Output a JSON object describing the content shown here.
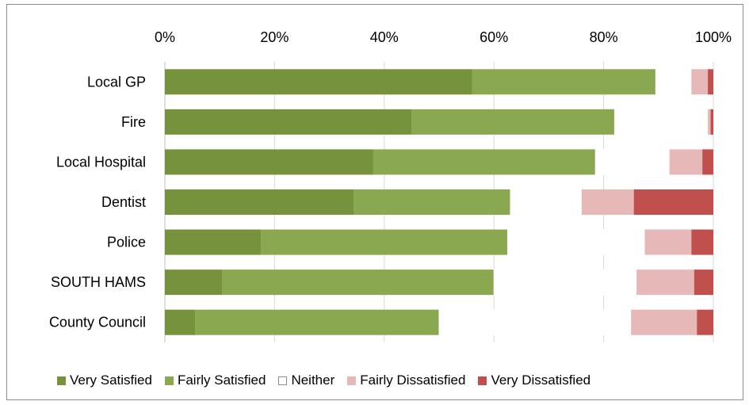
{
  "chart_data": {
    "type": "bar",
    "orientation": "horizontal",
    "stacked": true,
    "percent_stacked": true,
    "categories": [
      "Local GP",
      "Fire",
      "Local Hospital",
      "Dentist",
      "Police",
      "SOUTH HAMS",
      "County Council"
    ],
    "series": [
      {
        "name": "Very Satisfied",
        "color": "#76923c",
        "values": [
          56,
          45,
          38,
          34.5,
          17.5,
          10.5,
          5.5
        ]
      },
      {
        "name": "Fairly Satisfied",
        "color": "#8aa84f",
        "values": [
          33.5,
          37,
          40.5,
          28.5,
          45,
          49.5,
          44.5
        ]
      },
      {
        "name": "Neither",
        "color": "#ffffff",
        "values": [
          6.5,
          17,
          13.5,
          13,
          25,
          26,
          35
        ]
      },
      {
        "name": "Fairly Dissatisfied",
        "color": "#e6b9b8",
        "values": [
          3,
          0.5,
          6,
          9.5,
          8.5,
          10.5,
          12
        ]
      },
      {
        "name": "Very Dissatisfied",
        "color": "#c0504d",
        "values": [
          1,
          0.5,
          2,
          14.5,
          4,
          3.5,
          3
        ]
      }
    ],
    "xlim": [
      0,
      100
    ],
    "x_ticks": [
      "0%",
      "20%",
      "40%",
      "60%",
      "80%",
      "100%"
    ],
    "x_axis_position": "top",
    "grid": true,
    "legend_position": "bottom"
  }
}
